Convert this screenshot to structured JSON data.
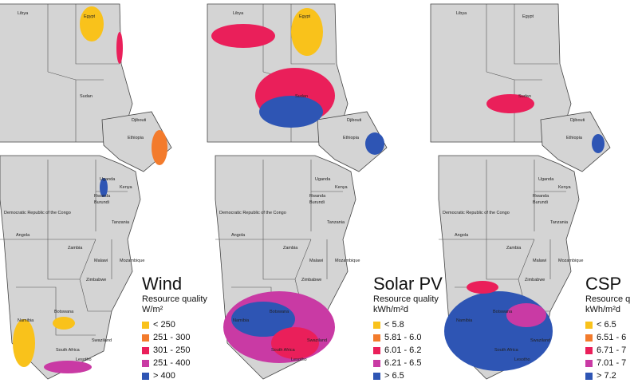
{
  "countries": [
    "Libya",
    "Egypt",
    "Sudan",
    "Djibouti",
    "Ethiopia",
    "Uganda",
    "Kenya",
    "Rwanda",
    "Burundi",
    "Democratic Republic of the Congo",
    "Tanzania",
    "Angola",
    "Zambia",
    "Malawi",
    "Mozambique",
    "Zimbabwe",
    "Namibia",
    "Botswana",
    "Swaziland",
    "South Africa",
    "Lesotho"
  ],
  "colors": {
    "land": "#d4d4d4",
    "c1": "#f9c21b",
    "c2": "#f37b2c",
    "c3": "#ea1f5a",
    "c4": "#c93aa4",
    "c5": "#2e55b4"
  },
  "panels": [
    {
      "title": "Wind",
      "subtitle": "Resource quality",
      "unit": "W/m²",
      "legend": [
        {
          "label": "< 250",
          "color": "#f9c21b"
        },
        {
          "label": "251 - 300",
          "color": "#f37b2c"
        },
        {
          "label": "301 - 250",
          "color": "#ea1f5a"
        },
        {
          "label": "251 - 400",
          "color": "#c93aa4"
        },
        {
          "label": "> 400",
          "color": "#2e55b4"
        }
      ]
    },
    {
      "title": "Solar PV",
      "subtitle": "Resource quality",
      "unit": "kWh/m²d",
      "legend": [
        {
          "label": "< 5.8",
          "color": "#f9c21b"
        },
        {
          "label": "5.81 - 6.0",
          "color": "#f37b2c"
        },
        {
          "label": "6.01 - 6.2",
          "color": "#ea1f5a"
        },
        {
          "label": "6.21 - 6.5",
          "color": "#c93aa4"
        },
        {
          "label": "> 6.5",
          "color": "#2e55b4"
        }
      ]
    },
    {
      "title": "CSP",
      "subtitle": "Resource q",
      "unit": "kWh/m²d",
      "legend": [
        {
          "label": "< 6.5",
          "color": "#f9c21b"
        },
        {
          "label": "6.51 - 6",
          "color": "#f37b2c"
        },
        {
          "label": "6.71 - 7",
          "color": "#ea1f5a"
        },
        {
          "label": "7.01 - 7",
          "color": "#c93aa4"
        },
        {
          "label": "> 7.2",
          "color": "#2e55b4"
        }
      ]
    }
  ]
}
